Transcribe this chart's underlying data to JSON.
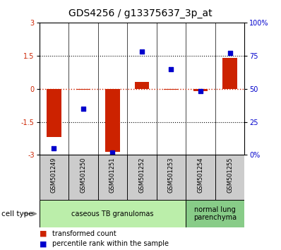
{
  "title": "GDS4256 / g13375637_3p_at",
  "samples": [
    "GSM501249",
    "GSM501250",
    "GSM501251",
    "GSM501252",
    "GSM501253",
    "GSM501254",
    "GSM501255"
  ],
  "transformed_count": [
    -2.2,
    -0.05,
    -2.85,
    0.3,
    -0.05,
    -0.1,
    1.4
  ],
  "percentile_rank": [
    5,
    35,
    2,
    78,
    65,
    48,
    77
  ],
  "ylim_left": [
    -3,
    3
  ],
  "ylim_right": [
    0,
    100
  ],
  "yticks_left": [
    -3,
    -1.5,
    0,
    1.5,
    3
  ],
  "yticks_right": [
    0,
    25,
    50,
    75,
    100
  ],
  "ytick_labels_right": [
    "0%",
    "25",
    "50",
    "75",
    "100%"
  ],
  "bar_color": "#cc2200",
  "dot_color": "#0000cc",
  "bar_width": 0.5,
  "cell_type_groups": [
    {
      "label": "caseous TB granulomas",
      "start": 0,
      "end": 4,
      "color": "#bbeeaa"
    },
    {
      "label": "normal lung\nparenchyma",
      "start": 5,
      "end": 6,
      "color": "#88cc88"
    }
  ],
  "cell_type_label": "cell type",
  "legend_red": "transformed count",
  "legend_blue": "percentile rank within the sample",
  "sample_box_color": "#cccccc",
  "title_fontsize": 10,
  "tick_fontsize": 7,
  "label_fontsize": 7,
  "sample_fontsize": 6
}
